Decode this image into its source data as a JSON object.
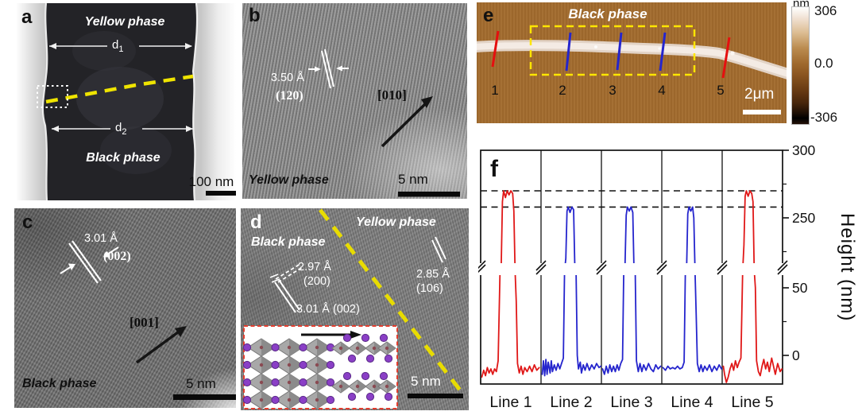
{
  "panels": {
    "a": {
      "label": "a",
      "top_phase": "Yellow phase",
      "bottom_phase": "Black phase",
      "d1": "d",
      "d1_sub": "1",
      "d2": "d",
      "d2_sub": "2",
      "scalebar": "100 nm"
    },
    "b": {
      "label": "b",
      "spacing": "3.50 Å",
      "plane": "(120)",
      "direction": "[010]",
      "phase": "Yellow phase",
      "scalebar": "5 nm"
    },
    "c": {
      "label": "c",
      "spacing": "3.01 Å",
      "plane": "(002)",
      "direction": "[001]",
      "phase": "Black phase",
      "scalebar": "5 nm"
    },
    "d": {
      "label": "d",
      "phase_right": "Yellow phase",
      "phase_left": "Black phase",
      "m200_value": "2.97 Å",
      "m200_plane": "(200)",
      "m002": "3.01 Å (002)",
      "m106_value": "2.85 Å",
      "m106_plane": "(106)",
      "scalebar": "5 nm"
    },
    "e": {
      "label": "e",
      "phase": "Black phase",
      "line_numbers": [
        "1",
        "2",
        "3",
        "4",
        "5"
      ],
      "scalebar": "2μm",
      "colorbar": {
        "unit": "nm",
        "max": "306",
        "mid": "0.0",
        "min": "-306"
      }
    },
    "f": {
      "label": "f",
      "ylabel": "Height (nm)"
    }
  },
  "colors": {
    "accent_yellow": "#efe400",
    "afm_background": "#a26b2e",
    "profile_red": "#e01818",
    "profile_blue": "#2525cd"
  },
  "chart_data": {
    "type": "line",
    "title": "AFM height profiles across the nanowire at scan lines 1-5",
    "ylabel": "Height (nm)",
    "panel_labels": [
      "Line 1",
      "Line 2",
      "Line 3",
      "Line 4",
      "Line 5"
    ],
    "y_axis": {
      "major_ticks": [
        300,
        250,
        50,
        0
      ],
      "minor_ticks": [
        275,
        225,
        25
      ],
      "axis_break_between": [
        62,
        212
      ],
      "upper_range": [
        212,
        300
      ],
      "lower_range": [
        -21,
        62
      ]
    },
    "dashed_guides": [
      270,
      258
    ],
    "series": [
      {
        "name": "Line 1",
        "color": "#e01818",
        "peak_height": 270,
        "points": [
          [
            0.02,
            -16
          ],
          [
            0.05,
            -11
          ],
          [
            0.08,
            -15
          ],
          [
            0.11,
            -9
          ],
          [
            0.14,
            -13
          ],
          [
            0.17,
            -10
          ],
          [
            0.2,
            -14
          ],
          [
            0.23,
            -10
          ],
          [
            0.26,
            -12
          ],
          [
            0.29,
            -4
          ],
          [
            0.32,
            60
          ],
          [
            0.34,
            190
          ],
          [
            0.36,
            262
          ],
          [
            0.38,
            270
          ],
          [
            0.41,
            265
          ],
          [
            0.44,
            270
          ],
          [
            0.47,
            267
          ],
          [
            0.5,
            270
          ],
          [
            0.53,
            268
          ],
          [
            0.55,
            255
          ],
          [
            0.57,
            150
          ],
          [
            0.59,
            40
          ],
          [
            0.61,
            -6
          ],
          [
            0.64,
            -13
          ],
          [
            0.67,
            -8
          ],
          [
            0.7,
            -14
          ],
          [
            0.73,
            -9
          ],
          [
            0.77,
            -12
          ],
          [
            0.81,
            -8
          ],
          [
            0.85,
            -12
          ],
          [
            0.89,
            -7
          ],
          [
            0.93,
            -11
          ],
          [
            0.97,
            -9
          ]
        ]
      },
      {
        "name": "Line 2",
        "color": "#2525cd",
        "peak_height": 258,
        "points": [
          [
            0.02,
            -14
          ],
          [
            0.04,
            -4
          ],
          [
            0.06,
            -15
          ],
          [
            0.08,
            -3
          ],
          [
            0.1,
            -14
          ],
          [
            0.12,
            -5
          ],
          [
            0.15,
            -13
          ],
          [
            0.17,
            -4
          ],
          [
            0.19,
            -12
          ],
          [
            0.22,
            -7
          ],
          [
            0.25,
            -11
          ],
          [
            0.28,
            -6
          ],
          [
            0.31,
            -10
          ],
          [
            0.34,
            -6
          ],
          [
            0.37,
            -2
          ],
          [
            0.39,
            90
          ],
          [
            0.41,
            220
          ],
          [
            0.43,
            255
          ],
          [
            0.45,
            258
          ],
          [
            0.48,
            254
          ],
          [
            0.51,
            258
          ],
          [
            0.54,
            256
          ],
          [
            0.56,
            200
          ],
          [
            0.58,
            70
          ],
          [
            0.6,
            0
          ],
          [
            0.62,
            -10
          ],
          [
            0.65,
            -5
          ],
          [
            0.67,
            -13
          ],
          [
            0.7,
            -7
          ],
          [
            0.73,
            -11
          ],
          [
            0.76,
            -6
          ],
          [
            0.8,
            -11
          ],
          [
            0.84,
            -7
          ],
          [
            0.88,
            -10
          ],
          [
            0.92,
            -6
          ],
          [
            0.96,
            -9
          ],
          [
            0.99,
            -8
          ]
        ]
      },
      {
        "name": "Line 3",
        "color": "#2525cd",
        "peak_height": 258,
        "points": [
          [
            0.02,
            -10
          ],
          [
            0.05,
            -14
          ],
          [
            0.08,
            -8
          ],
          [
            0.11,
            -13
          ],
          [
            0.14,
            -7
          ],
          [
            0.17,
            -12
          ],
          [
            0.2,
            -8
          ],
          [
            0.23,
            -12
          ],
          [
            0.26,
            -7
          ],
          [
            0.29,
            -11
          ],
          [
            0.32,
            -6
          ],
          [
            0.35,
            -3
          ],
          [
            0.37,
            80
          ],
          [
            0.39,
            210
          ],
          [
            0.41,
            252
          ],
          [
            0.43,
            258
          ],
          [
            0.46,
            255
          ],
          [
            0.49,
            258
          ],
          [
            0.52,
            254
          ],
          [
            0.54,
            190
          ],
          [
            0.56,
            60
          ],
          [
            0.58,
            -4
          ],
          [
            0.61,
            -12
          ],
          [
            0.64,
            -6
          ],
          [
            0.67,
            -12
          ],
          [
            0.7,
            -7
          ],
          [
            0.74,
            -11
          ],
          [
            0.78,
            -6
          ],
          [
            0.82,
            -10
          ],
          [
            0.86,
            -12
          ],
          [
            0.9,
            -7
          ],
          [
            0.94,
            -10
          ],
          [
            0.98,
            -8
          ]
        ]
      },
      {
        "name": "Line 4",
        "color": "#2525cd",
        "peak_height": 258,
        "points": [
          [
            0.02,
            -9
          ],
          [
            0.06,
            -11
          ],
          [
            0.1,
            -8
          ],
          [
            0.14,
            -10
          ],
          [
            0.18,
            -9
          ],
          [
            0.22,
            -10
          ],
          [
            0.26,
            -8
          ],
          [
            0.3,
            -10
          ],
          [
            0.34,
            -9
          ],
          [
            0.37,
            -5
          ],
          [
            0.39,
            60
          ],
          [
            0.41,
            200
          ],
          [
            0.43,
            253
          ],
          [
            0.45,
            258
          ],
          [
            0.48,
            255
          ],
          [
            0.51,
            258
          ],
          [
            0.53,
            250
          ],
          [
            0.55,
            150
          ],
          [
            0.57,
            30
          ],
          [
            0.59,
            -6
          ],
          [
            0.62,
            -12
          ],
          [
            0.65,
            -7
          ],
          [
            0.68,
            -12
          ],
          [
            0.71,
            -8
          ],
          [
            0.75,
            -11
          ],
          [
            0.79,
            -7
          ],
          [
            0.83,
            -12
          ],
          [
            0.87,
            -8
          ],
          [
            0.91,
            -11
          ],
          [
            0.95,
            -7
          ],
          [
            0.99,
            -10
          ]
        ]
      },
      {
        "name": "Line 5",
        "color": "#e01818",
        "peak_height": 270,
        "points": [
          [
            0.02,
            -8
          ],
          [
            0.04,
            -14
          ],
          [
            0.07,
            -20
          ],
          [
            0.1,
            -16
          ],
          [
            0.13,
            -10
          ],
          [
            0.16,
            -6
          ],
          [
            0.19,
            -11
          ],
          [
            0.22,
            -4
          ],
          [
            0.25,
            -9
          ],
          [
            0.28,
            -5
          ],
          [
            0.31,
            -2
          ],
          [
            0.34,
            100
          ],
          [
            0.36,
            230
          ],
          [
            0.38,
            266
          ],
          [
            0.4,
            270
          ],
          [
            0.43,
            266
          ],
          [
            0.46,
            270
          ],
          [
            0.49,
            268
          ],
          [
            0.51,
            262
          ],
          [
            0.53,
            180
          ],
          [
            0.55,
            50
          ],
          [
            0.57,
            -4
          ],
          [
            0.6,
            -12
          ],
          [
            0.63,
            -15
          ],
          [
            0.66,
            -8
          ],
          [
            0.69,
            -3
          ],
          [
            0.72,
            -10
          ],
          [
            0.75,
            -5
          ],
          [
            0.78,
            -12
          ],
          [
            0.82,
            -2
          ],
          [
            0.85,
            -8
          ],
          [
            0.88,
            -14
          ],
          [
            0.92,
            -6
          ],
          [
            0.96,
            -12
          ],
          [
            0.99,
            -10
          ]
        ]
      }
    ]
  }
}
